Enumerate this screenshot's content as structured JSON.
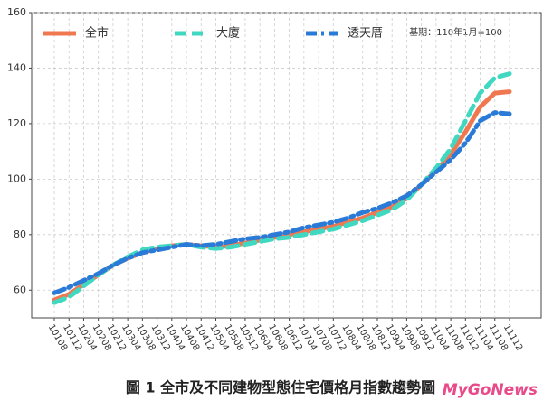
{
  "chart_data": {
    "type": "line",
    "title": "圖 1 全市及不同建物型態住宅價格月指數趨勢圖",
    "annotation": "基期：110年1月=100",
    "watermark": "MyGoNews",
    "categories": [
      "10108",
      "10112",
      "10204",
      "10208",
      "10212",
      "10304",
      "10308",
      "10312",
      "10404",
      "10408",
      "10412",
      "10504",
      "10508",
      "10512",
      "10604",
      "10608",
      "10612",
      "10704",
      "10708",
      "10712",
      "10804",
      "10808",
      "10812",
      "10904",
      "10908",
      "10912",
      "11004",
      "11008",
      "11012",
      "11104",
      "11108",
      "11112"
    ],
    "series": [
      {
        "name": "全市",
        "color": "#f07850",
        "dash": "solid",
        "values": [
          56.5,
          58.5,
          62,
          65.5,
          69,
          71.5,
          73.5,
          75,
          76,
          76.5,
          76,
          75.5,
          76,
          77,
          78,
          79,
          80,
          81,
          82,
          83,
          84.5,
          86,
          88,
          90,
          93,
          98,
          103,
          109,
          117,
          126,
          131,
          131.5
        ]
      },
      {
        "name": "大廈",
        "color": "#40d8c0",
        "dash": "dashed",
        "values": [
          55.5,
          57.5,
          61.5,
          65.5,
          69,
          72,
          74.5,
          75.5,
          76,
          76.5,
          75.5,
          75,
          75.5,
          76.5,
          77.5,
          78.5,
          79,
          80,
          81,
          82,
          83.5,
          85,
          87,
          89,
          92.5,
          98,
          104,
          111,
          121,
          131,
          136.5,
          138
        ]
      },
      {
        "name": "透天厝",
        "color": "#2a7ad8",
        "dash": "dashdot",
        "values": [
          59,
          61,
          63.5,
          66,
          69,
          71.5,
          73.5,
          74.5,
          75.5,
          76.5,
          76,
          76.5,
          77.5,
          78.5,
          79,
          80,
          81,
          82.5,
          83.5,
          84.5,
          86,
          88,
          89.5,
          91.5,
          94,
          98,
          102.5,
          107,
          113,
          121,
          124,
          123.5
        ]
      }
    ],
    "ylim": [
      50,
      160
    ],
    "yticks": [
      60,
      80,
      100,
      120,
      140,
      160
    ],
    "grid": true,
    "legend": "top-left"
  }
}
